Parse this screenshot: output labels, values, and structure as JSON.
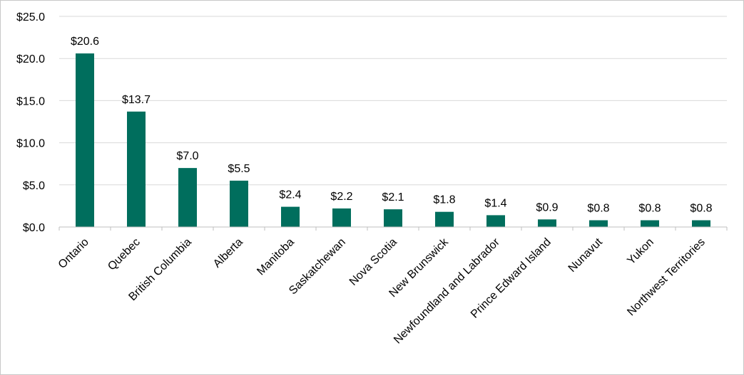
{
  "chart_data": {
    "type": "bar",
    "categories": [
      "Ontario",
      "Quebec",
      "British Columbia",
      "Alberta",
      "Manitoba",
      "Saskatchewan",
      "Nova Scotia",
      "New Brunswick",
      "Newfoundland and Labrador",
      "Prince Edward Island",
      "Nunavut",
      "Yukon",
      "Northwest Territories"
    ],
    "values": [
      20.6,
      13.7,
      7.0,
      5.5,
      2.4,
      2.2,
      2.1,
      1.8,
      1.4,
      0.9,
      0.8,
      0.8,
      0.8
    ],
    "data_labels": [
      "$20.6",
      "$13.7",
      "$7.0",
      "$5.5",
      "$2.4",
      "$2.2",
      "$2.1",
      "$1.8",
      "$1.4",
      "$0.9",
      "$0.8",
      "$0.8",
      "$0.8"
    ],
    "y_ticks": [
      0,
      5,
      10,
      15,
      20,
      25
    ],
    "y_tick_labels": [
      "$0.0",
      "$5.0",
      "$10.0",
      "$15.0",
      "$20.0",
      "$25.0"
    ],
    "ylim": [
      0,
      25
    ],
    "title": "",
    "xlabel": "",
    "ylabel": "",
    "grid": true,
    "legend": "none",
    "colors": {
      "bar": "#006E5D",
      "grid": "#d9d9d9",
      "axis": "#bfbfbf"
    }
  }
}
